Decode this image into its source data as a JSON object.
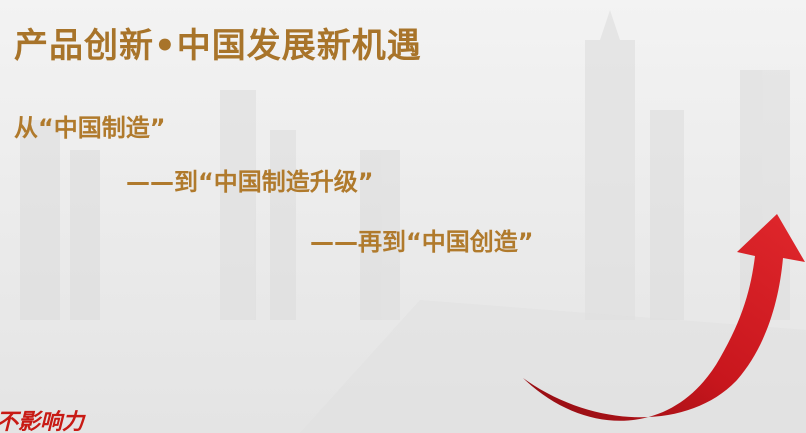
{
  "slide": {
    "title": "产品创新•中国发展新机遇",
    "lines": [
      "从“中国制造”",
      "——到“中国制造升级”",
      "——再到“中国创造”"
    ],
    "stamp": "不影响力",
    "colors": {
      "text": "#b07a2c",
      "arrow": "#c8161d",
      "stamp": "#c81a14"
    }
  }
}
